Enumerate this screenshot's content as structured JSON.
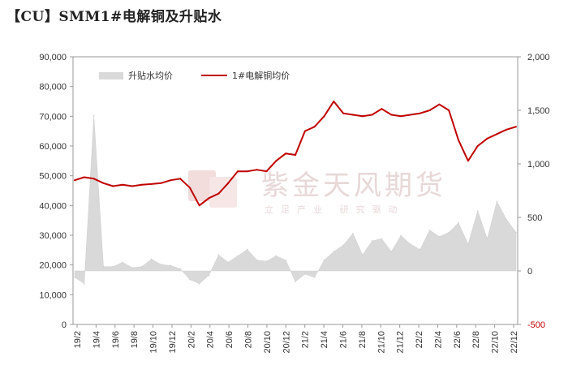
{
  "title": "【CU】SMM1#电解铜及升贴水",
  "watermark": {
    "name": "紫金天风期货",
    "tagline": "立足产业 研究驱动"
  },
  "colors": {
    "price_line": "#c00000",
    "premium_area": "#d9d9d9",
    "axis": "#888888"
  },
  "chart_data": {
    "type": "line",
    "title": "",
    "legend": [
      "升贴水均价",
      "1#电解铜均价"
    ],
    "legend_placement": "top-left",
    "y_left": {
      "range": [
        0,
        90000
      ],
      "ticks": [
        "0",
        "10,000",
        "20,000",
        "30,000",
        "40,000",
        "50,000",
        "60,000",
        "70,000",
        "80,000",
        "90,000"
      ]
    },
    "y_right": {
      "range": [
        -500,
        2000
      ],
      "ticks": [
        "-500",
        "0",
        "500",
        "1,000",
        "1,500",
        "2,000"
      ]
    },
    "x_ticks": [
      "19/2",
      "19/4",
      "19/6",
      "19/8",
      "19/10",
      "19/12",
      "20/2",
      "20/4",
      "20/6",
      "20/8",
      "20/10",
      "20/12",
      "21/2",
      "21/4",
      "21/6",
      "21/8",
      "21/10",
      "21/12",
      "22/2",
      "22/4",
      "22/6",
      "22/8",
      "22/10",
      "22/12"
    ],
    "series": [
      {
        "name": "1#电解铜均价",
        "type": "line",
        "axis": "left",
        "x": [
          "19/2",
          "19/3",
          "19/4",
          "19/5",
          "19/6",
          "19/7",
          "19/8",
          "19/9",
          "19/10",
          "19/11",
          "19/12",
          "20/1",
          "20/2",
          "20/3",
          "20/4",
          "20/5",
          "20/6",
          "20/7",
          "20/8",
          "20/9",
          "20/10",
          "20/11",
          "20/12",
          "21/1",
          "21/2",
          "21/3",
          "21/4",
          "21/5",
          "21/6",
          "21/7",
          "21/8",
          "21/9",
          "21/10",
          "21/11",
          "21/12",
          "22/1",
          "22/2",
          "22/3",
          "22/4",
          "22/5",
          "22/6",
          "22/7",
          "22/8",
          "22/9",
          "22/10",
          "22/11",
          "22/12"
        ],
        "values": [
          48500,
          49500,
          49000,
          47500,
          46500,
          47000,
          46500,
          47000,
          47200,
          47500,
          48500,
          49000,
          46000,
          40000,
          42500,
          44000,
          47500,
          51500,
          51500,
          52000,
          51500,
          55000,
          57500,
          57000,
          65000,
          66500,
          70000,
          75000,
          71000,
          70500,
          70000,
          70500,
          72500,
          70500,
          70000,
          70500,
          71000,
          72000,
          74000,
          72000,
          62000,
          55000,
          60000,
          62500,
          64000,
          65500,
          66500
        ]
      },
      {
        "name": "升贴水均价",
        "type": "area",
        "axis": "right",
        "x": [
          "19/2",
          "19/3",
          "19/4",
          "19/5",
          "19/6",
          "19/7",
          "19/8",
          "19/9",
          "19/10",
          "19/11",
          "19/12",
          "20/1",
          "20/2",
          "20/3",
          "20/4",
          "20/5",
          "20/6",
          "20/7",
          "20/8",
          "20/9",
          "20/10",
          "20/11",
          "20/12",
          "21/1",
          "21/2",
          "21/3",
          "21/4",
          "21/5",
          "21/6",
          "21/7",
          "21/8",
          "21/9",
          "21/10",
          "21/11",
          "21/12",
          "22/1",
          "22/2",
          "22/3",
          "22/4",
          "22/5",
          "22/6",
          "22/7",
          "22/8",
          "22/9",
          "22/10",
          "22/11",
          "22/12"
        ],
        "values": [
          -60,
          -120,
          1450,
          40,
          40,
          80,
          30,
          40,
          110,
          60,
          50,
          20,
          -80,
          -120,
          -40,
          150,
          80,
          140,
          200,
          100,
          90,
          140,
          100,
          -100,
          -30,
          -60,
          100,
          180,
          240,
          350,
          150,
          280,
          300,
          180,
          330,
          250,
          200,
          380,
          320,
          360,
          450,
          250,
          560,
          300,
          650,
          480,
          360
        ]
      }
    ]
  }
}
